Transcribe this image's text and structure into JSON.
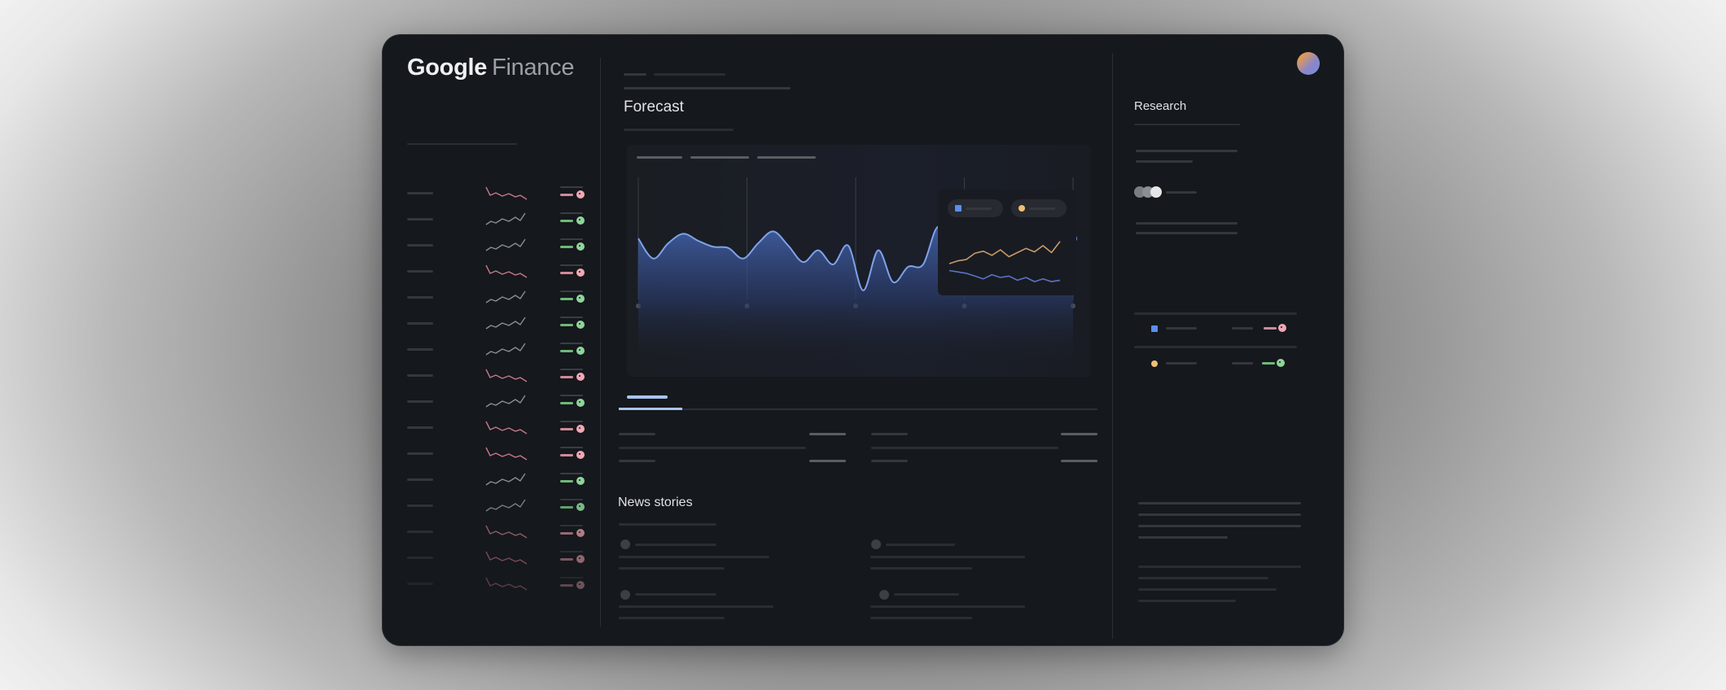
{
  "app": {
    "logo_google": "Google",
    "logo_finance": "Finance"
  },
  "colors": {
    "frame_bg": "#15181c",
    "accent_blue": "#6e98e8",
    "accent_orange": "#d9a86a",
    "positive": "#7fd08a",
    "negative": "#f09aa8",
    "tab_active": "#a8c4f0"
  },
  "watchlist": {
    "rows": [
      {
        "trend": "down"
      },
      {
        "trend": "up"
      },
      {
        "trend": "up"
      },
      {
        "trend": "down"
      },
      {
        "trend": "up"
      },
      {
        "trend": "up"
      },
      {
        "trend": "up"
      },
      {
        "trend": "down"
      },
      {
        "trend": "up"
      },
      {
        "trend": "down"
      },
      {
        "trend": "down"
      },
      {
        "trend": "up"
      },
      {
        "trend": "up"
      },
      {
        "trend": "down"
      },
      {
        "trend": "down"
      },
      {
        "trend": "down"
      }
    ]
  },
  "main": {
    "section_title": "Forecast",
    "news_title": "News stories"
  },
  "research": {
    "title": "Research",
    "legend": [
      {
        "icon": "square",
        "color": "#5a8ef0"
      },
      {
        "icon": "circle",
        "color": "#f0c070"
      }
    ],
    "holdings": [
      {
        "icon": "square",
        "color": "#5a8ef0",
        "trend": "down"
      },
      {
        "icon": "circle",
        "color": "#f0c070",
        "trend": "up"
      }
    ]
  },
  "chart_data": [
    {
      "type": "area",
      "title": "Forecast",
      "xlabel": "",
      "ylabel": "",
      "x_ticks": 5,
      "grid": "vertical",
      "values": [
        62,
        45,
        58,
        66,
        60,
        55,
        54,
        45,
        58,
        68,
        56,
        42,
        52,
        40,
        56,
        18,
        52,
        25,
        38,
        40,
        72,
        48,
        78,
        64,
        70,
        47,
        56,
        80,
        69,
        62
      ],
      "ylim": [
        0,
        100
      ],
      "end_marker": true
    },
    {
      "type": "line",
      "title": "Research comparison",
      "series": [
        {
          "name": "orange",
          "values": [
            40,
            44,
            46,
            55,
            58,
            52,
            60,
            50,
            56,
            62,
            57,
            66,
            56,
            72
          ]
        },
        {
          "name": "blue",
          "values": [
            30,
            28,
            26,
            22,
            18,
            24,
            20,
            22,
            16,
            20,
            14,
            18,
            14,
            16
          ]
        }
      ],
      "ylim": [
        0,
        100
      ]
    }
  ]
}
